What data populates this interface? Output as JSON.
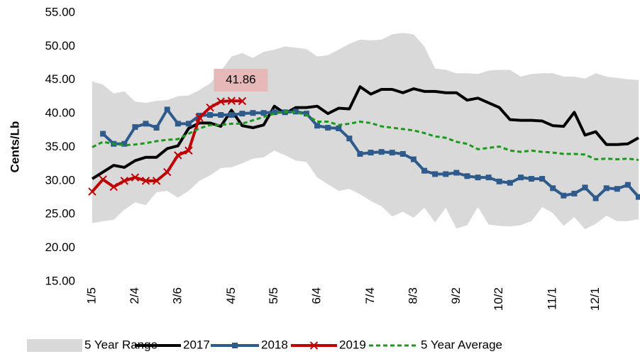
{
  "chart_data": {
    "type": "line",
    "y_label": "Cents/Lb",
    "categories": [
      "1/5",
      null,
      null,
      null,
      "2/4",
      null,
      null,
      null,
      "3/6",
      null,
      null,
      null,
      null,
      "4/5",
      null,
      null,
      null,
      "5/5",
      null,
      null,
      null,
      "6/4",
      null,
      null,
      null,
      null,
      "7/4",
      null,
      null,
      null,
      "8/3",
      null,
      null,
      null,
      "9/2",
      null,
      null,
      null,
      "10/2",
      null,
      null,
      null,
      null,
      "11/1",
      null,
      null,
      null,
      "12/1",
      null,
      null,
      null,
      null
    ],
    "ylim": [
      15,
      55
    ],
    "yticks": [
      {
        "value": 15,
        "label": "15.00"
      },
      {
        "value": 20,
        "label": "20.00"
      },
      {
        "value": 25,
        "label": "25.00"
      },
      {
        "value": 30,
        "label": "30.00"
      },
      {
        "value": 35,
        "label": "35.00"
      },
      {
        "value": 40,
        "label": "40.00"
      },
      {
        "value": 45,
        "label": "45.00"
      },
      {
        "value": 50,
        "label": "50.00"
      },
      {
        "value": 55,
        "label": "55.00"
      }
    ],
    "range": {
      "name": "5 Year Range",
      "color": "#d9d9d9",
      "high": [
        44.8,
        44.3,
        43,
        43.3,
        41.8,
        41.6,
        41.9,
        42,
        42.6,
        42.7,
        43.5,
        44.5,
        46.3,
        48.5,
        49,
        48.3,
        49.2,
        49.5,
        50,
        49.8,
        49.6,
        48.5,
        48.7,
        49.5,
        50.4,
        51,
        50.9,
        51,
        51.8,
        52,
        51.8,
        50,
        46.7,
        46.5,
        46,
        46,
        45.9,
        46.4,
        46.5,
        46.5,
        45.5,
        45.9,
        46,
        46,
        45.5,
        45.5,
        45.2,
        46,
        45.5,
        45.3,
        45.1,
        45
      ],
      "low": [
        23.7,
        24,
        24.2,
        25.7,
        26.8,
        26.4,
        28.3,
        28.5,
        27.5,
        28.5,
        30,
        30.8,
        31.9,
        32,
        32.6,
        33.3,
        33.5,
        34.5,
        33.8,
        33,
        32.8,
        30.5,
        29.5,
        28.5,
        28.8,
        28,
        27,
        26.2,
        24.7,
        25.4,
        24.5,
        26,
        23.8,
        26,
        22.9,
        23.4,
        26.1,
        23.5,
        23.3,
        23.2,
        23.4,
        24,
        26.1,
        25.2,
        23.3,
        24.6,
        22.8,
        23.6,
        24.8,
        24,
        24,
        24.3
      ]
    },
    "series": [
      {
        "name": "2017",
        "color": "#000000",
        "marker": "none",
        "dash": false,
        "values": [
          30.3,
          31.3,
          32.3,
          32,
          33,
          33.5,
          33.5,
          34.8,
          35.2,
          37.8,
          38.6,
          38.6,
          38.1,
          40.5,
          38.2,
          37.9,
          38.3,
          41.1,
          40,
          40.9,
          40.9,
          41.1,
          40,
          40.8,
          40.7,
          44,
          42.9,
          43.6,
          43.6,
          43.1,
          43.7,
          43.3,
          43.3,
          43.1,
          43.1,
          42,
          42.3,
          41.6,
          40.9,
          39.1,
          39,
          39,
          38.9,
          38.2,
          38.1,
          40.2,
          36.8,
          37.3,
          35.4,
          35.4,
          35.5,
          36.4
        ]
      },
      {
        "name": "2018",
        "color": "#2e5b8c",
        "marker": "square",
        "dash": false,
        "values": [
          null,
          37,
          35.5,
          35.5,
          38,
          38.5,
          37.9,
          40.6,
          38.5,
          38.5,
          39.7,
          39.8,
          39.8,
          39.8,
          40,
          40.1,
          40.1,
          40.2,
          40.2,
          40.3,
          40,
          38.2,
          37.9,
          37.8,
          36.3,
          34,
          34.2,
          34.3,
          34.2,
          34,
          33.2,
          31.5,
          31,
          31,
          31.2,
          30.7,
          30.5,
          30.5,
          29.9,
          29.7,
          30.5,
          30.3,
          30.3,
          28.9,
          27.8,
          28.1,
          29,
          27.4,
          28.9,
          28.8,
          29.4,
          27.6
        ]
      },
      {
        "name": "2019",
        "color": "#c00000",
        "marker": "x",
        "dash": false,
        "values": [
          28.4,
          30.2,
          29.1,
          30,
          30.5,
          30,
          30,
          31.3,
          33.8,
          34.5,
          39.4,
          40.9,
          41.8,
          41.9,
          41.86,
          null,
          null,
          null,
          null,
          null,
          null,
          null,
          null,
          null,
          null,
          null,
          null,
          null,
          null,
          null,
          null,
          null,
          null,
          null,
          null,
          null,
          null,
          null,
          null,
          null,
          null,
          null,
          null,
          null,
          null,
          null,
          null,
          null,
          null,
          null,
          null,
          null
        ]
      },
      {
        "name": "5 Year Average",
        "color": "#1a9a1a",
        "marker": "none",
        "dash": true,
        "values": [
          35,
          35.8,
          35.5,
          35.3,
          35.4,
          35.6,
          35.9,
          36.1,
          36.2,
          37,
          37.8,
          38.3,
          38.3,
          38.5,
          38.5,
          39,
          39.5,
          40,
          40.3,
          40.2,
          39.8,
          38.8,
          38.8,
          38.3,
          38.5,
          38.8,
          38.6,
          38.1,
          37.9,
          37.7,
          37.5,
          37.1,
          36.6,
          36.4,
          35.8,
          35.5,
          34.7,
          34.9,
          35.1,
          34.5,
          34.3,
          34.5,
          34.3,
          34.2,
          34,
          34,
          33.9,
          33.2,
          33.3,
          33.2,
          33.3,
          33.1
        ]
      }
    ],
    "callout": {
      "series": 2,
      "index": 14,
      "color": "#e6b8b7"
    }
  }
}
